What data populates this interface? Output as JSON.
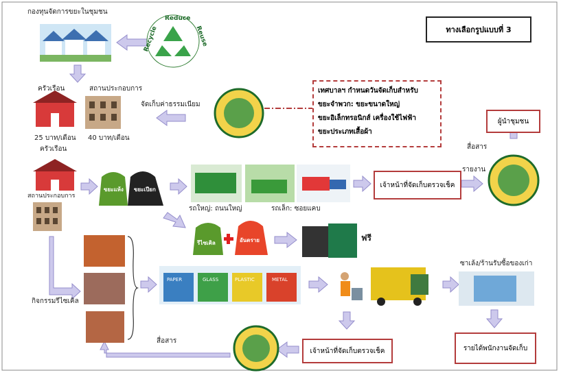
{
  "header": {
    "title": "ทางเลือกรูปแบบที่ 3"
  },
  "fund": {
    "label": "กองทุนจัดการขยะในชุมชน"
  },
  "logo": {
    "reduce": "Reduce",
    "reuse": "Reuse",
    "recycle": "Recycle"
  },
  "fees": {
    "label": "จัดเก็บค่าธรรมเนียม",
    "household": {
      "label": "ครัวเรือน",
      "fee": "25 บาท/เดือน"
    },
    "business": {
      "label": "สถานประกอบการ",
      "fee": "40 บาท/เดือน"
    }
  },
  "notice": {
    "lines": [
      "เทศบาลฯ กำหนดวันจัดเก็บสำหรับ",
      "ขยะจำพวก: ขยะขนาดใหญ่",
      "ขยะอิเล็กทรอนิกส์ เครื่องใช้ไฟฟ้า",
      "ขยะประเภทเสื้อผ้า"
    ]
  },
  "leader": {
    "label": "ผู้นำชุมชน",
    "communicate": "สื่อสาร",
    "report": "รายงาน"
  },
  "sources": {
    "household": "ครัวเรือน",
    "business": "สถานประกอบการ"
  },
  "bags": {
    "dry": "ขยะแห้ง",
    "wet": "ขยะเปียก",
    "recycle": "รีไซเคิล",
    "hazard": "อันตราย"
  },
  "trucks": {
    "big": "รถใหญ่: ถนนใหญ่",
    "small": "รถเล็ก: ซอยแคบ"
  },
  "collector_top": "เจ้าหน้าที่จัดเก็บตรวจเช็ค",
  "free": "ฟรี",
  "recycling": {
    "label": "กิจกรรมรีไซเคิล",
    "bins": [
      "PAPER",
      "GLASS",
      "PLASTIC",
      "METAL"
    ]
  },
  "buyer": "ซาเล้ง/ร้านรับซื้อของเก่า",
  "income": "รายได้พนักงานจัดเก็บ",
  "collector_bottom": "เจ้าหน้าที่จัดเก็บตรวจเช็ค",
  "communicate_bottom": "สื่อสาร"
}
